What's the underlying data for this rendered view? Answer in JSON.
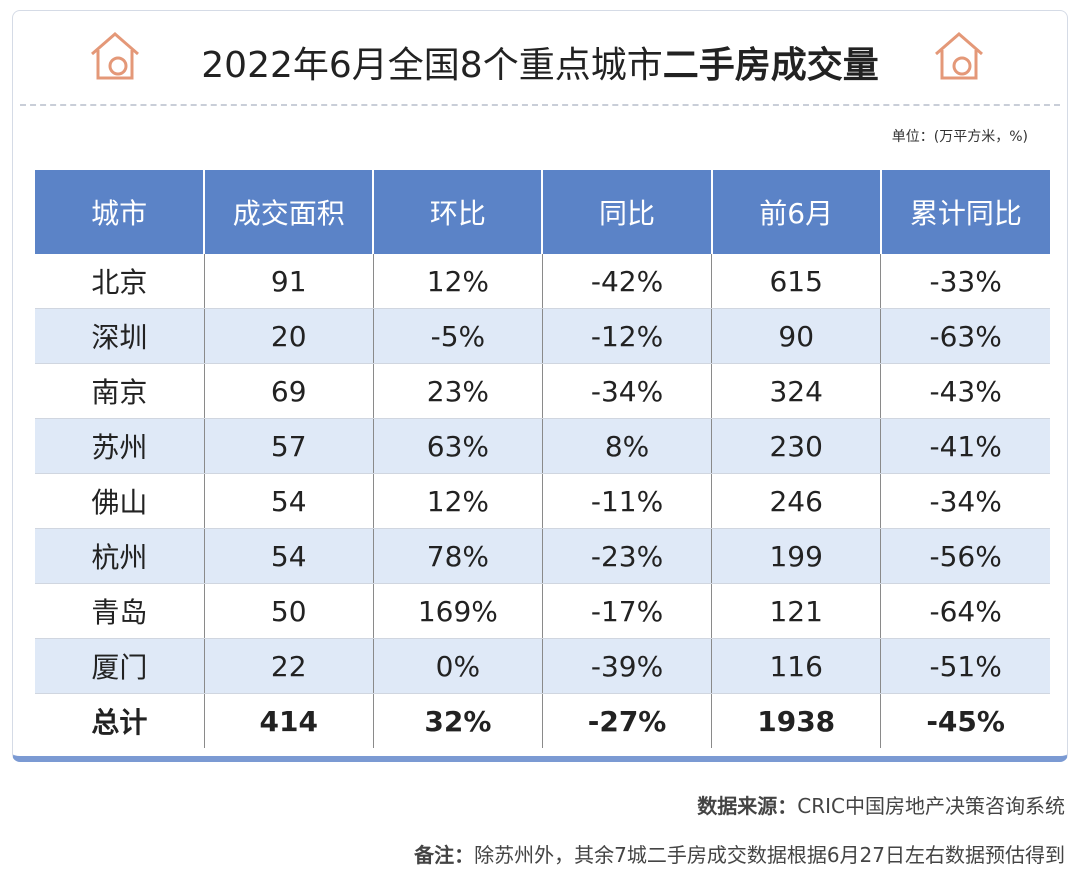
{
  "header": {
    "title_plain": "2022年6月全国8个重点城市",
    "title_bold": "二手房成交量",
    "unit": "单位：(万平方米，%)"
  },
  "table": {
    "columns": [
      "城市",
      "成交面积",
      "环比",
      "同比",
      "前6月",
      "累计同比"
    ],
    "rows": [
      [
        "北京",
        "91",
        "12%",
        "-42%",
        "615",
        "-33%"
      ],
      [
        "深圳",
        "20",
        "-5%",
        "-12%",
        "90",
        "-63%"
      ],
      [
        "南京",
        "69",
        "23%",
        "-34%",
        "324",
        "-43%"
      ],
      [
        "苏州",
        "57",
        "63%",
        "8%",
        "230",
        "-41%"
      ],
      [
        "佛山",
        "54",
        "12%",
        "-11%",
        "246",
        "-34%"
      ],
      [
        "杭州",
        "54",
        "78%",
        "-23%",
        "199",
        "-56%"
      ],
      [
        "青岛",
        "50",
        "169%",
        "-17%",
        "121",
        "-64%"
      ],
      [
        "厦门",
        "22",
        "0%",
        "-39%",
        "116",
        "-51%"
      ]
    ],
    "total": [
      "总计",
      "414",
      "32%",
      "-27%",
      "1938",
      "-45%"
    ]
  },
  "footer": {
    "source_label": "数据来源：",
    "source": "CRIC中国房地产决策咨询系统",
    "note_label": "备注：",
    "note": "除苏州外，其余7城二手房成交数据根据6月27日左右数据预估得到"
  }
}
